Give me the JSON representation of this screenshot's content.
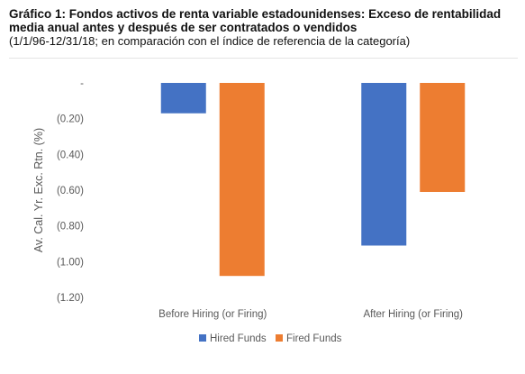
{
  "header": {
    "title": "Gráfico 1: Fondos activos de renta variable estadounidenses: Exceso de rentabilidad media anual antes y después de ser contratados o vendidos",
    "subtitle": "(1/1/96-12/31/18; en comparación con el índice de referencia de la categoría)"
  },
  "chart_data": {
    "type": "bar",
    "categories": [
      "Before Hiring (or Firing)",
      "After Hiring (or Firing)"
    ],
    "series": [
      {
        "name": "Hired Funds",
        "color": "#4472c4",
        "values": [
          -0.17,
          -0.91
        ]
      },
      {
        "name": "Fired Funds",
        "color": "#ed7d31",
        "values": [
          -1.08,
          -0.61
        ]
      }
    ],
    "ylabel": "Av. Cal. Yr. Exc. Rtn. (%)",
    "xlabel": "",
    "ylim": [
      -1.2,
      0
    ],
    "yticks": [
      0,
      -0.2,
      -0.4,
      -0.6,
      -0.8,
      -1.0,
      -1.2
    ],
    "ytick_labels": [
      "-",
      "(0.20)",
      "(0.40)",
      "(0.60)",
      "(0.80)",
      "(1.00)",
      "(1.20)"
    ],
    "grid": false,
    "legend_position": "bottom"
  }
}
